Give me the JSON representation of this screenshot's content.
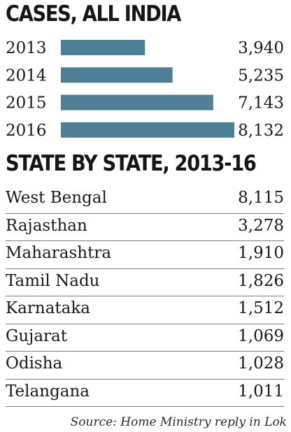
{
  "chart_data": [
    {
      "type": "bar",
      "orientation": "horizontal",
      "title": "CASES, ALL INDIA",
      "categories": [
        "2013",
        "2014",
        "2015",
        "2016"
      ],
      "values": [
        3940,
        5235,
        7143,
        8132
      ],
      "value_labels": [
        "3,940",
        "5,235",
        "7,143",
        "8,132"
      ],
      "bar_color": "#4f7f96",
      "grid": false,
      "legend": "none"
    },
    {
      "type": "table",
      "title": "STATE BY STATE, 2013-16",
      "rows": [
        {
          "name": "West Bengal",
          "value": "8,115"
        },
        {
          "name": "Rajasthan",
          "value": "3,278"
        },
        {
          "name": "Maharashtra",
          "value": "1,910"
        },
        {
          "name": "Tamil Nadu",
          "value": "1,826"
        },
        {
          "name": "Karnataka",
          "value": "1,512"
        },
        {
          "name": "Gujarat",
          "value": "1,069"
        },
        {
          "name": "Odisha",
          "value": "1,028"
        },
        {
          "name": "Telangana",
          "value": "1,011"
        }
      ]
    }
  ],
  "source": "Source: Home Ministry reply in Lok"
}
